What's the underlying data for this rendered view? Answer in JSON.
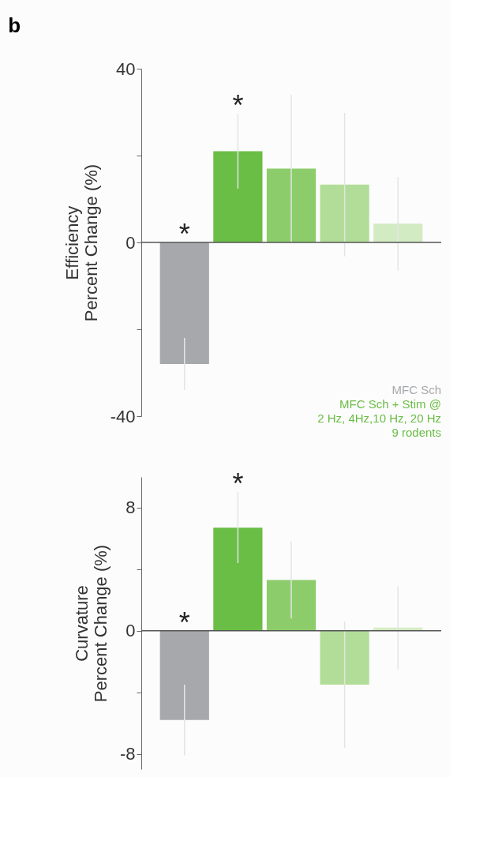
{
  "chart_data": [
    {
      "type": "bar",
      "title": "b",
      "ylabel": "Efficiency\nPercent Change (%)",
      "categories": [
        null,
        null,
        null,
        null,
        null
      ],
      "values": [
        -28,
        21,
        17,
        13.3,
        4.3
      ],
      "errors": [
        6,
        8.6,
        17,
        16.5,
        10.8
      ],
      "colors": [
        "#a7a8ac",
        "#6abd45",
        "#8ccc6a",
        "#b2dd98",
        "#d3ebc3"
      ],
      "value_labels": [
        "*",
        "*",
        null,
        null,
        null
      ],
      "ylim": [
        -40,
        40
      ],
      "yticks": [
        40,
        {
          "value": 20,
          "label": null
        },
        0,
        {
          "value": -20,
          "label": null
        },
        -40
      ],
      "ref_lines": [
        {
          "axis": "y",
          "value": 0
        }
      ],
      "annotations": [
        "MFC Sch",
        "MFC Sch + Stim @",
        "2 Hz, 4Hz,10 Hz, 20 Hz",
        "9 rodents"
      ],
      "grid": false
    },
    {
      "type": "bar",
      "ylabel": "Curvature\nPercent Change (%)",
      "categories": [
        null,
        null,
        null,
        null,
        null
      ],
      "values": [
        -5.8,
        6.7,
        3.3,
        -3.5,
        0.2
      ],
      "errors": [
        2.3,
        2.3,
        2.5,
        4.1,
        2.7
      ],
      "colors": [
        "#a7a8ac",
        "#6abd45",
        "#8ccc6a",
        "#b2dd98",
        "#d3ebc3"
      ],
      "value_labels": [
        "*",
        "*",
        null,
        null,
        null
      ],
      "ylim": [
        -9,
        10
      ],
      "yticks": [
        8,
        {
          "value": 4,
          "label": null
        },
        0,
        {
          "value": -4,
          "label": null
        },
        -8
      ],
      "ref_lines": [
        {
          "axis": "y",
          "value": 0
        }
      ],
      "grid": false
    }
  ]
}
